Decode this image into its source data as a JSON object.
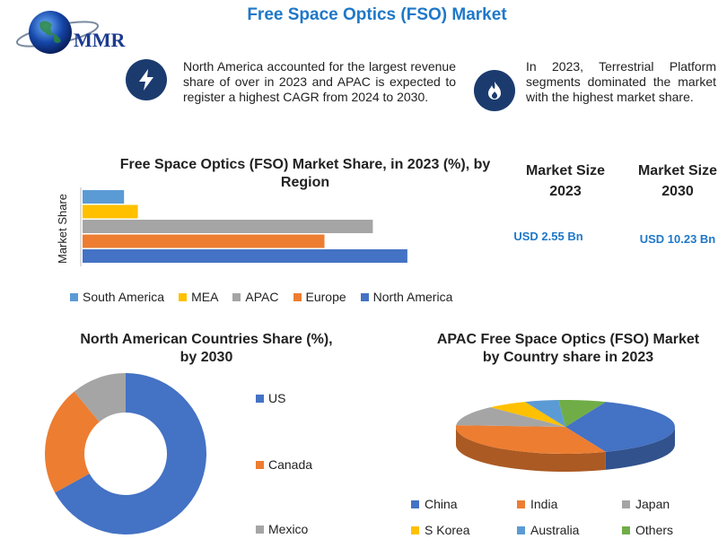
{
  "header": {
    "logo_text": "MMR",
    "title": "Free Space Optics (FSO) Market"
  },
  "info": [
    {
      "icon": "lightning-icon",
      "text": "North America accounted for the largest revenue share of over in 2023 and APAC is expected to register a highest CAGR from 2024 to 2030."
    },
    {
      "icon": "flame-icon",
      "text": "In 2023, Terrestrial Platform segments dominated the market with the highest market share."
    }
  ],
  "market_size": [
    {
      "label": "Market Size 2023",
      "value": "USD 2.55 Bn"
    },
    {
      "label": "Market Size 2030",
      "value": "USD 10.23 Bn"
    }
  ],
  "colors": {
    "blue": "#4472c4",
    "orange": "#ed7d31",
    "gray": "#a5a5a5",
    "yellow": "#ffc000",
    "lightblue": "#5b9bd5",
    "green": "#70ad47",
    "title_blue": "#1f78c8",
    "icon_navy": "#1b3b6f"
  },
  "chart_data": [
    {
      "type": "bar",
      "orientation": "horizontal",
      "title": "Free Space Optics (FSO) Market Share, in 2023 (%), by Region",
      "ylabel": "Market Share",
      "categories": [
        "South America",
        "MEA",
        "APAC",
        "Europe",
        "North America"
      ],
      "values": [
        6,
        8,
        42,
        35,
        47
      ],
      "colors": [
        "#5b9bd5",
        "#ffc000",
        "#a5a5a5",
        "#ed7d31",
        "#4472c4"
      ],
      "xlim": [
        0,
        50
      ],
      "grid": false,
      "legend": "bottom"
    },
    {
      "type": "pie",
      "variant": "donut",
      "title": "North American Countries Share (%), by 2030",
      "categories": [
        "US",
        "Canada",
        "Mexico"
      ],
      "values": [
        67,
        22,
        11
      ],
      "colors": [
        "#4472c4",
        "#ed7d31",
        "#a5a5a5"
      ],
      "legend": "right"
    },
    {
      "type": "pie",
      "variant": "3d",
      "title": "APAC  Free Space Optics (FSO) Market by Country share in 2023",
      "categories": [
        "China",
        "India",
        "Japan",
        "S Korea",
        "Australia",
        "Others"
      ],
      "values": [
        38,
        32,
        12,
        6,
        5,
        7
      ],
      "colors": [
        "#4472c4",
        "#ed7d31",
        "#a5a5a5",
        "#ffc000",
        "#5b9bd5",
        "#70ad47"
      ],
      "legend": "bottom"
    }
  ]
}
